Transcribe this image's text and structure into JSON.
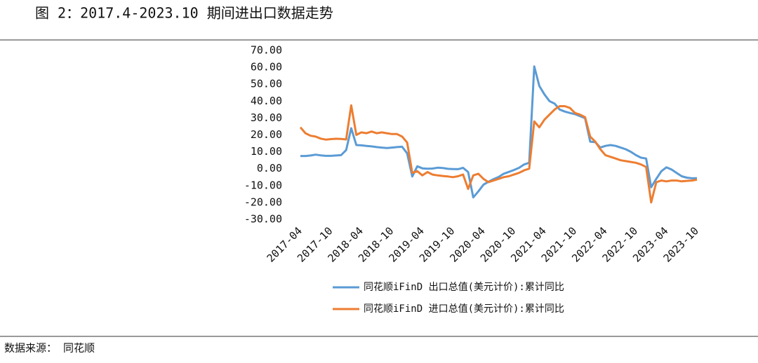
{
  "chart_data": {
    "type": "line",
    "title": "图 2：2017.4-2023.10 期间进出口数据走势",
    "source": "数据来源： 同花顺",
    "categories": [
      "2017-04",
      null,
      null,
      null,
      null,
      null,
      "2017-10",
      null,
      null,
      null,
      null,
      null,
      "2018-04",
      null,
      null,
      null,
      null,
      null,
      "2018-10",
      null,
      null,
      null,
      null,
      null,
      "2019-04",
      null,
      null,
      null,
      null,
      null,
      "2019-10",
      null,
      null,
      null,
      null,
      null,
      "2020-04",
      null,
      null,
      null,
      null,
      null,
      "2020-10",
      null,
      null,
      null,
      null,
      null,
      "2021-04",
      null,
      null,
      null,
      null,
      null,
      "2021-10",
      null,
      null,
      null,
      null,
      null,
      "2022-04",
      null,
      null,
      null,
      null,
      null,
      "2022-10",
      null,
      null,
      null,
      null,
      null,
      "2023-04",
      null,
      null,
      null,
      null,
      null,
      "2023-10"
    ],
    "series": [
      {
        "name": "同花顺iFinD 出口总值(美元计价):累计同比",
        "color": "#5b9bd5",
        "values": [
          7.5,
          7.5,
          7.8,
          8.3,
          7.9,
          7.6,
          7.6,
          7.8,
          8.0,
          11,
          24,
          14,
          13.8,
          13.5,
          13.2,
          12.8,
          12.5,
          12.2,
          12.5,
          12.8,
          13,
          9.1,
          -4.6,
          1.4,
          0.2,
          0.0,
          0.1,
          0.6,
          0.4,
          -0.1,
          -0.2,
          -0.3,
          0.5,
          -2,
          -17,
          -13.5,
          -9.5,
          -7.7,
          -6.2,
          -4.9,
          -3.0,
          -1.9,
          -0.8,
          0.5,
          2.5,
          3.5,
          60.6,
          49,
          44,
          40,
          38.5,
          35,
          33.8,
          33,
          32.3,
          31.1,
          29.9,
          16,
          15.7,
          12.5,
          13.5,
          14,
          13.5,
          12.5,
          11.5,
          10,
          8,
          6.5,
          6,
          -11,
          -6,
          -1.5,
          0.8,
          -0.5,
          -2.5,
          -4.5,
          -5.3,
          -5.7,
          -5.6
        ]
      },
      {
        "name": "同花顺iFinD 进口总值(美元计价):累计同比",
        "color": "#ed7d31",
        "values": [
          24.5,
          21,
          19.5,
          19,
          17.8,
          17.2,
          17.5,
          17.7,
          17.6,
          17.3,
          37.5,
          20,
          21.5,
          21,
          22,
          21,
          21.5,
          21,
          20.5,
          20.5,
          19,
          15.5,
          -2.5,
          -1.5,
          -4,
          -2,
          -3.5,
          -4,
          -4.3,
          -4.6,
          -5,
          -4.5,
          -3.5,
          -12,
          -4,
          -3,
          -6,
          -8,
          -7,
          -6,
          -5,
          -4.5,
          -3.5,
          -2.5,
          -1,
          0,
          28,
          24.5,
          29,
          32,
          35,
          37,
          37,
          36,
          33,
          32,
          30.5,
          19,
          16,
          11.5,
          8,
          7,
          6,
          5,
          4.5,
          4,
          3.5,
          2.5,
          1,
          -20,
          -8,
          -7,
          -7.5,
          -7,
          -7,
          -7.5,
          -7.2,
          -7,
          -6.5
        ]
      }
    ],
    "ylim": [
      -30,
      70
    ],
    "yticks": [
      {
        "value": -30,
        "label": "-30.00"
      },
      {
        "value": -20,
        "label": "-20.00"
      },
      {
        "value": -10,
        "label": "-10.00"
      },
      {
        "value": 0,
        "label": "0.00"
      },
      {
        "value": 10,
        "label": "10.00"
      },
      {
        "value": 20,
        "label": "20.00"
      },
      {
        "value": 30,
        "label": "30.00"
      },
      {
        "value": 40,
        "label": "40.00"
      },
      {
        "value": 50,
        "label": "50.00"
      },
      {
        "value": 60,
        "label": "60.00"
      },
      {
        "value": 70,
        "label": "70.00"
      }
    ],
    "grid": false
  }
}
